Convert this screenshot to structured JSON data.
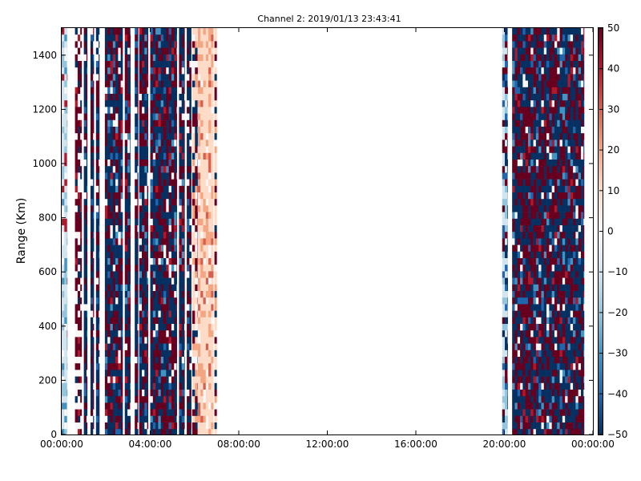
{
  "chart_data": {
    "type": "heatmap",
    "title": "Channel 2: 2019/01/13 23:43:41",
    "xlabel": "",
    "ylabel": "Range (Km)",
    "x_ticks": [
      "00:00:00",
      "04:00:00",
      "08:00:00",
      "12:00:00",
      "16:00:00",
      "20:00:00",
      "00:00:00"
    ],
    "x_range_hours": [
      0,
      24
    ],
    "y_ticks": [
      0,
      200,
      400,
      600,
      800,
      1000,
      1200,
      1400
    ],
    "ylim": [
      0,
      1500
    ],
    "colorbar": {
      "ticks": [
        50,
        40,
        30,
        20,
        10,
        0,
        -10,
        -20,
        -30,
        -40,
        -50
      ],
      "range": [
        -50,
        50
      ],
      "colormap": "RdBu_r",
      "colors": [
        "#053061",
        "#2166ac",
        "#4393c3",
        "#92c5de",
        "#d1e5f0",
        "#f7f7f7",
        "#fddbc7",
        "#f4a582",
        "#d6604d",
        "#b2182b",
        "#67001f"
      ]
    },
    "data_bands_hours": [
      {
        "start": 0.0,
        "end": 0.25,
        "pattern": "light-blue"
      },
      {
        "start": 0.6,
        "end": 0.9,
        "pattern": "red-white"
      },
      {
        "start": 1.0,
        "end": 1.15,
        "pattern": "dark"
      },
      {
        "start": 1.3,
        "end": 1.45,
        "pattern": "dark"
      },
      {
        "start": 1.55,
        "end": 1.7,
        "pattern": "dark"
      },
      {
        "start": 1.95,
        "end": 2.75,
        "pattern": "dark-mixed"
      },
      {
        "start": 2.85,
        "end": 3.1,
        "pattern": "dark-mixed"
      },
      {
        "start": 3.3,
        "end": 3.45,
        "pattern": "dark"
      },
      {
        "start": 3.5,
        "end": 3.9,
        "pattern": "dark-mixed"
      },
      {
        "start": 4.0,
        "end": 5.2,
        "pattern": "dark-mixed"
      },
      {
        "start": 5.3,
        "end": 5.55,
        "pattern": "dark-mixed"
      },
      {
        "start": 5.65,
        "end": 5.85,
        "pattern": "dark"
      },
      {
        "start": 5.9,
        "end": 6.15,
        "pattern": "light-red-mixed"
      },
      {
        "start": 6.15,
        "end": 6.85,
        "pattern": "light-red"
      },
      {
        "start": 6.9,
        "end": 7.0,
        "pattern": "light-red-mixed"
      },
      {
        "start": 19.9,
        "end": 20.15,
        "pattern": "light-blue-mixed"
      },
      {
        "start": 20.35,
        "end": 23.6,
        "pattern": "dark-mixed"
      }
    ]
  }
}
